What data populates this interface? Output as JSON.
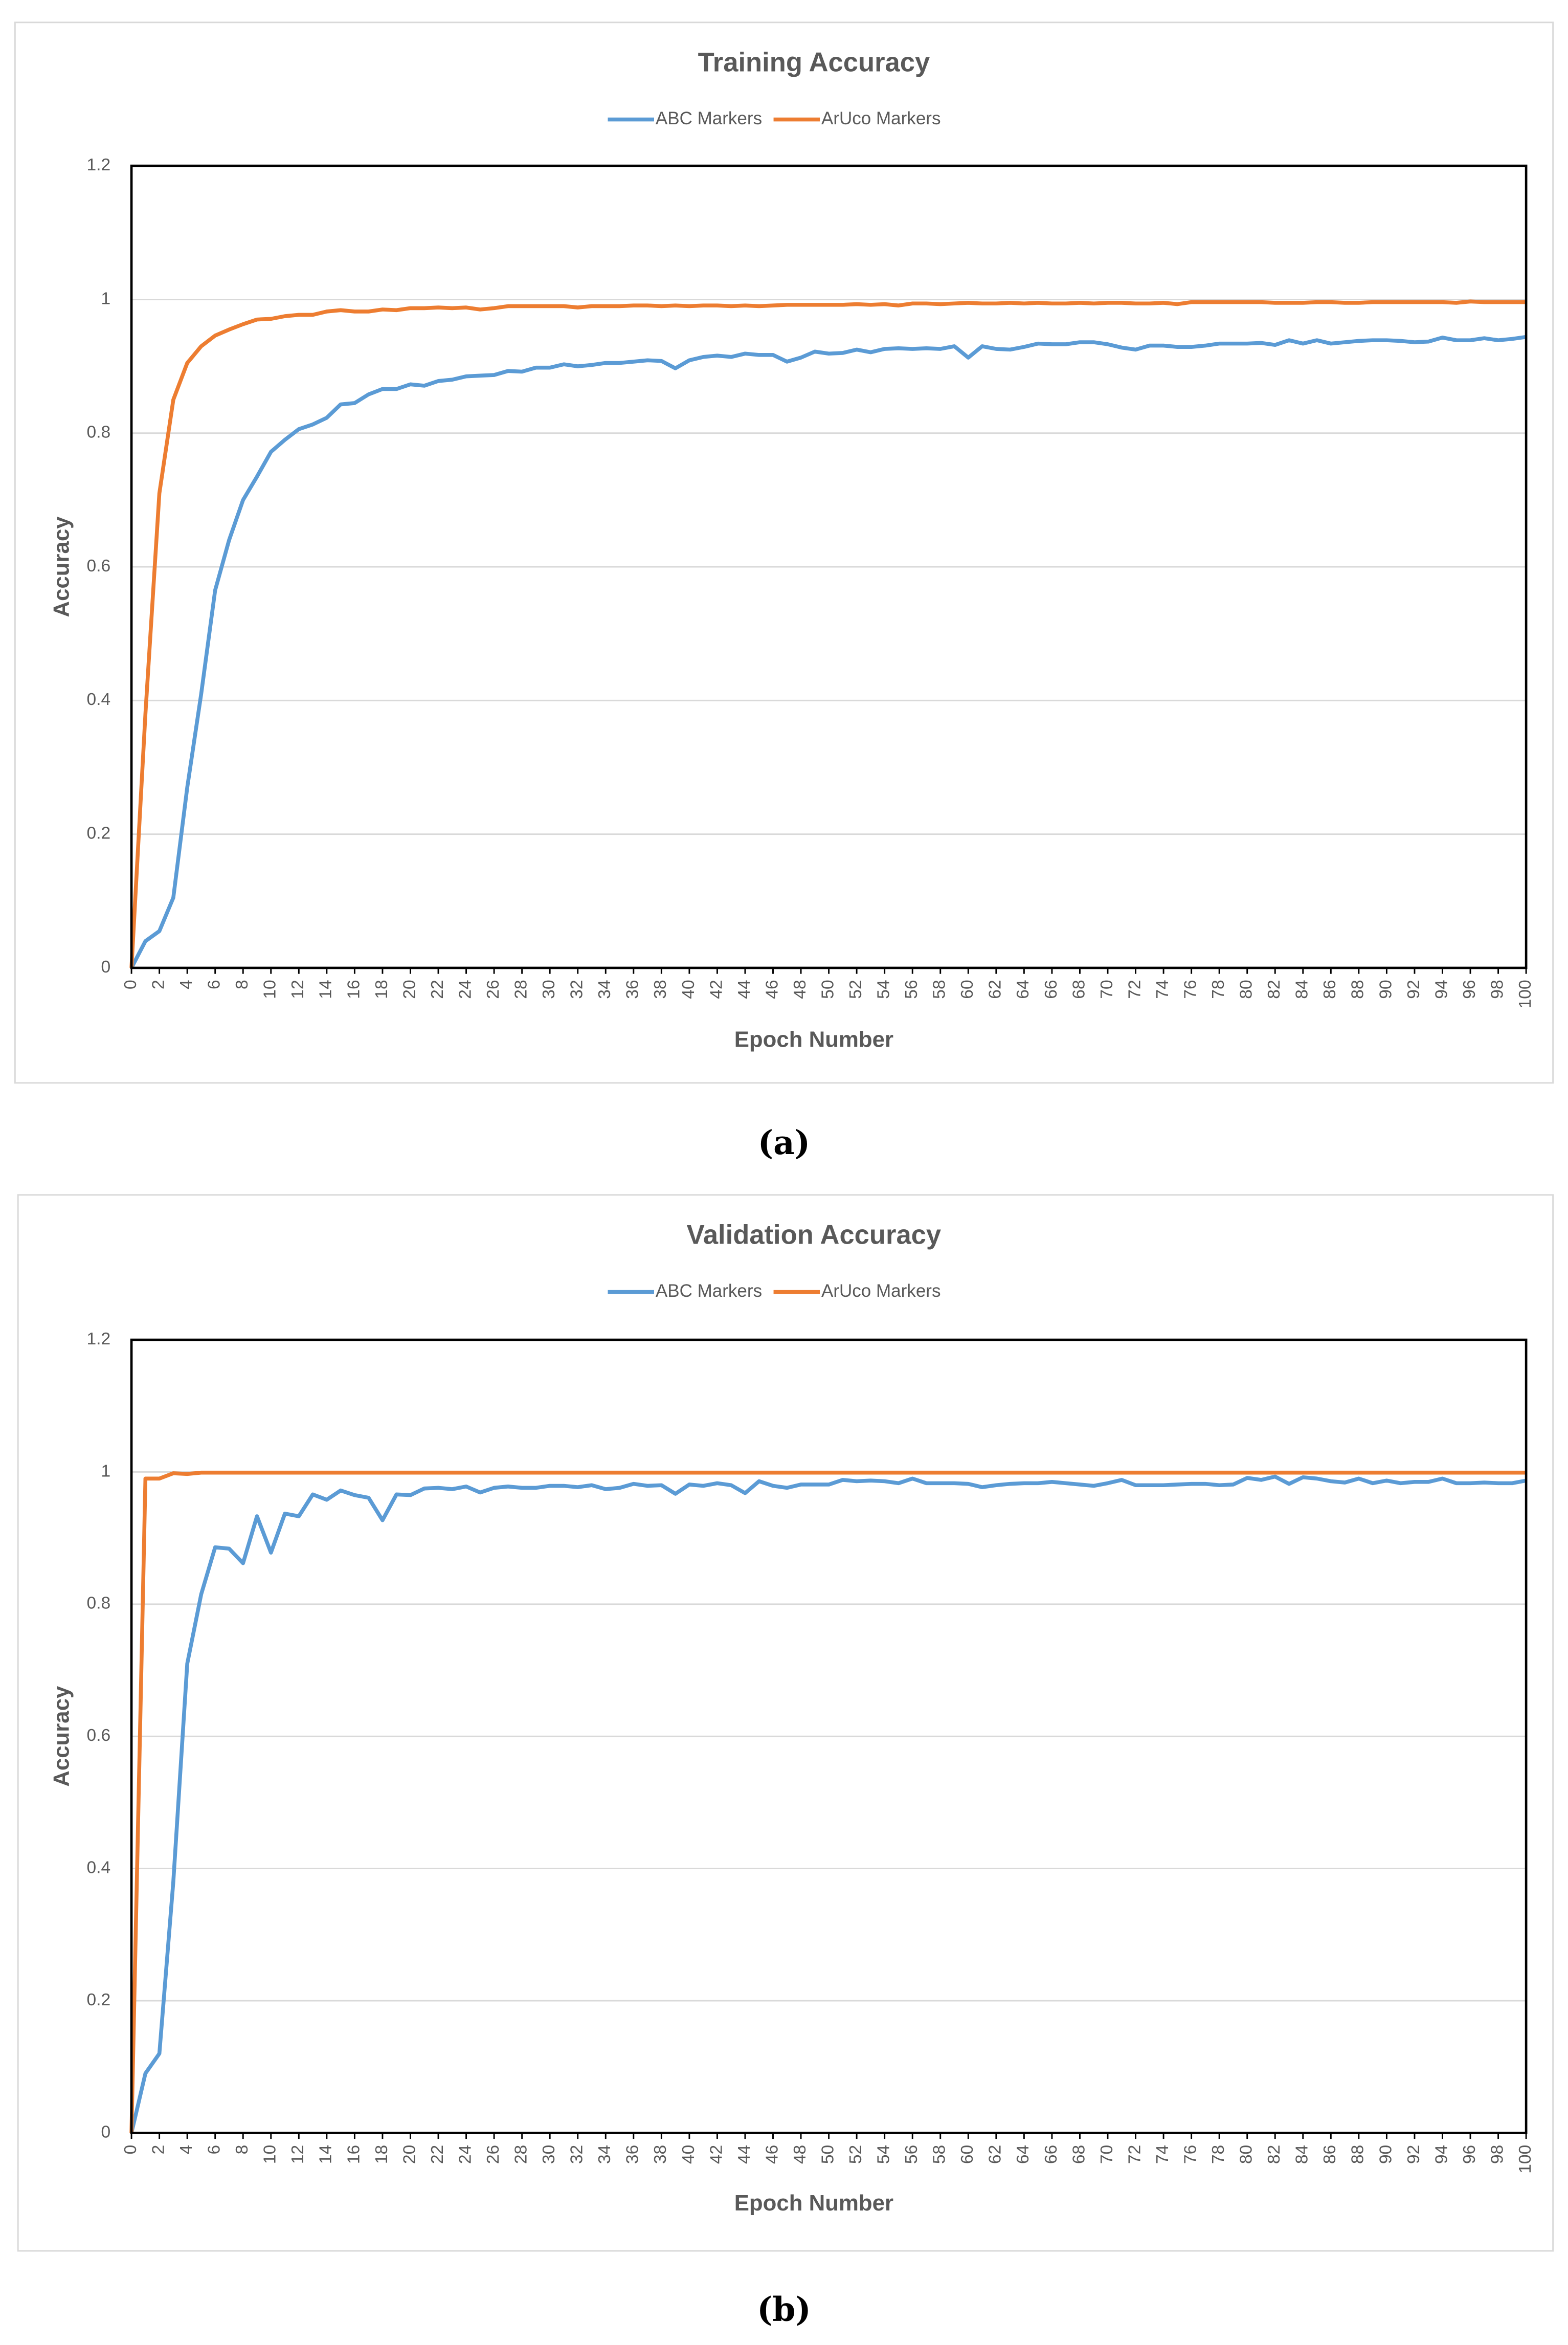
{
  "chart_data": [
    {
      "type": "line",
      "title": "Training Accuracy",
      "caption": "(a)",
      "xlabel": "Epoch Number",
      "ylabel": "Accuracy",
      "x": [
        0,
        1,
        2,
        3,
        4,
        5,
        6,
        7,
        8,
        9,
        10,
        11,
        12,
        13,
        14,
        15,
        16,
        17,
        18,
        19,
        20,
        21,
        22,
        23,
        24,
        25,
        26,
        27,
        28,
        29,
        30,
        31,
        32,
        33,
        34,
        35,
        36,
        37,
        38,
        39,
        40,
        41,
        42,
        43,
        44,
        45,
        46,
        47,
        48,
        49,
        50,
        51,
        52,
        53,
        54,
        55,
        56,
        57,
        58,
        59,
        60,
        61,
        62,
        63,
        64,
        65,
        66,
        67,
        68,
        69,
        70,
        71,
        72,
        73,
        74,
        75,
        76,
        77,
        78,
        79,
        80,
        81,
        82,
        83,
        84,
        85,
        86,
        87,
        88,
        89,
        90,
        91,
        92,
        93,
        94,
        95,
        96,
        97,
        98,
        99,
        100
      ],
      "xlim": [
        0,
        100
      ],
      "xticks": [
        0,
        2,
        4,
        6,
        8,
        10,
        12,
        14,
        16,
        18,
        20,
        22,
        24,
        26,
        28,
        30,
        32,
        34,
        36,
        38,
        40,
        42,
        44,
        46,
        48,
        50,
        52,
        54,
        56,
        58,
        60,
        62,
        64,
        66,
        68,
        70,
        72,
        74,
        76,
        78,
        80,
        82,
        84,
        86,
        88,
        90,
        92,
        94,
        96,
        98,
        100
      ],
      "ylim": [
        0,
        1.2
      ],
      "yticks": [
        0,
        0.2,
        0.4,
        0.6,
        0.8,
        1,
        1.2
      ],
      "grid": true,
      "legend": "top",
      "series": [
        {
          "name": "ABC Markers",
          "color": "#5b9bd5",
          "values": [
            0,
            0.04,
            0.055,
            0.105,
            0.27,
            0.41,
            0.565,
            0.64,
            0.7,
            0.735,
            0.772,
            0.79,
            0.806,
            0.813,
            0.823,
            0.843,
            0.845,
            0.858,
            0.866,
            0.866,
            0.873,
            0.871,
            0.878,
            0.88,
            0.885,
            0.886,
            0.887,
            0.893,
            0.892,
            0.898,
            0.898,
            0.903,
            0.9,
            0.902,
            0.905,
            0.905,
            0.907,
            0.909,
            0.908,
            0.897,
            0.909,
            0.914,
            0.916,
            0.914,
            0.919,
            0.917,
            0.917,
            0.907,
            0.913,
            0.922,
            0.919,
            0.92,
            0.925,
            0.921,
            0.926,
            0.927,
            0.926,
            0.927,
            0.926,
            0.93,
            0.913,
            0.93,
            0.926,
            0.925,
            0.929,
            0.934,
            0.933,
            0.933,
            0.936,
            0.936,
            0.933,
            0.928,
            0.925,
            0.931,
            0.931,
            0.929,
            0.929,
            0.931,
            0.934,
            0.934,
            0.934,
            0.935,
            0.932,
            0.939,
            0.934,
            0.939,
            0.934,
            0.936,
            0.938,
            0.939,
            0.939,
            0.938,
            0.936,
            0.937,
            0.943,
            0.939,
            0.939,
            0.942,
            0.939,
            0.941,
            0.944
          ]
        },
        {
          "name": "ArUco Markers",
          "color": "#ed7d31",
          "values": [
            0,
            0.38,
            0.71,
            0.85,
            0.905,
            0.93,
            0.946,
            0.955,
            0.963,
            0.97,
            0.971,
            0.975,
            0.977,
            0.977,
            0.982,
            0.984,
            0.982,
            0.982,
            0.985,
            0.984,
            0.987,
            0.987,
            0.988,
            0.987,
            0.988,
            0.985,
            0.987,
            0.99,
            0.99,
            0.99,
            0.99,
            0.99,
            0.988,
            0.99,
            0.99,
            0.99,
            0.991,
            0.991,
            0.99,
            0.991,
            0.99,
            0.991,
            0.991,
            0.99,
            0.991,
            0.99,
            0.991,
            0.992,
            0.992,
            0.992,
            0.992,
            0.992,
            0.993,
            0.992,
            0.993,
            0.991,
            0.994,
            0.994,
            0.993,
            0.994,
            0.995,
            0.994,
            0.994,
            0.995,
            0.994,
            0.995,
            0.994,
            0.994,
            0.995,
            0.994,
            0.995,
            0.995,
            0.994,
            0.994,
            0.995,
            0.993,
            0.996,
            0.996,
            0.996,
            0.996,
            0.996,
            0.996,
            0.995,
            0.995,
            0.995,
            0.996,
            0.996,
            0.995,
            0.995,
            0.996,
            0.996,
            0.996,
            0.996,
            0.996,
            0.996,
            0.995,
            0.997,
            0.996,
            0.996,
            0.996,
            0.996
          ]
        }
      ]
    },
    {
      "type": "line",
      "title": "Validation Accuracy",
      "caption": "(b)",
      "xlabel": "Epoch Number",
      "ylabel": "Accuracy",
      "x": [
        0,
        1,
        2,
        3,
        4,
        5,
        6,
        7,
        8,
        9,
        10,
        11,
        12,
        13,
        14,
        15,
        16,
        17,
        18,
        19,
        20,
        21,
        22,
        23,
        24,
        25,
        26,
        27,
        28,
        29,
        30,
        31,
        32,
        33,
        34,
        35,
        36,
        37,
        38,
        39,
        40,
        41,
        42,
        43,
        44,
        45,
        46,
        47,
        48,
        49,
        50,
        51,
        52,
        53,
        54,
        55,
        56,
        57,
        58,
        59,
        60,
        61,
        62,
        63,
        64,
        65,
        66,
        67,
        68,
        69,
        70,
        71,
        72,
        73,
        74,
        75,
        76,
        77,
        78,
        79,
        80,
        81,
        82,
        83,
        84,
        85,
        86,
        87,
        88,
        89,
        90,
        91,
        92,
        93,
        94,
        95,
        96,
        97,
        98,
        99,
        100
      ],
      "xlim": [
        0,
        100
      ],
      "xticks": [
        0,
        2,
        4,
        6,
        8,
        10,
        12,
        14,
        16,
        18,
        20,
        22,
        24,
        26,
        28,
        30,
        32,
        34,
        36,
        38,
        40,
        42,
        44,
        46,
        48,
        50,
        52,
        54,
        56,
        58,
        60,
        62,
        64,
        66,
        68,
        70,
        72,
        74,
        76,
        78,
        80,
        82,
        84,
        86,
        88,
        90,
        92,
        94,
        96,
        98,
        100
      ],
      "ylim": [
        0,
        1.2
      ],
      "yticks": [
        0,
        0.2,
        0.4,
        0.6,
        0.8,
        1,
        1.2
      ],
      "grid": true,
      "legend": "top",
      "series": [
        {
          "name": "ABC Markers",
          "color": "#5b9bd5",
          "values": [
            0,
            0.09,
            0.12,
            0.38,
            0.71,
            0.815,
            0.886,
            0.884,
            0.862,
            0.933,
            0.878,
            0.937,
            0.933,
            0.966,
            0.958,
            0.972,
            0.965,
            0.961,
            0.927,
            0.966,
            0.965,
            0.975,
            0.976,
            0.974,
            0.978,
            0.969,
            0.976,
            0.978,
            0.976,
            0.976,
            0.979,
            0.979,
            0.977,
            0.98,
            0.974,
            0.976,
            0.982,
            0.979,
            0.98,
            0.967,
            0.981,
            0.979,
            0.983,
            0.98,
            0.968,
            0.986,
            0.979,
            0.976,
            0.981,
            0.981,
            0.981,
            0.988,
            0.986,
            0.987,
            0.986,
            0.983,
            0.99,
            0.983,
            0.983,
            0.983,
            0.982,
            0.977,
            0.98,
            0.982,
            0.983,
            0.983,
            0.985,
            0.983,
            0.981,
            0.979,
            0.983,
            0.988,
            0.98,
            0.98,
            0.98,
            0.981,
            0.982,
            0.982,
            0.98,
            0.981,
            0.991,
            0.988,
            0.993,
            0.982,
            0.992,
            0.99,
            0.986,
            0.984,
            0.99,
            0.983,
            0.987,
            0.983,
            0.985,
            0.985,
            0.99,
            0.983,
            0.983,
            0.984,
            0.983,
            0.983,
            0.987
          ]
        },
        {
          "name": "ArUco Markers",
          "color": "#ed7d31",
          "values": [
            0,
            0.99,
            0.99,
            0.998,
            0.997,
            0.999,
            0.999,
            0.999,
            0.999,
            0.999,
            0.999,
            0.999,
            0.999,
            0.999,
            0.999,
            0.999,
            0.999,
            0.999,
            0.999,
            0.999,
            0.999,
            0.999,
            0.999,
            0.999,
            0.999,
            0.999,
            0.999,
            0.999,
            0.999,
            0.999,
            0.999,
            0.999,
            0.999,
            0.999,
            0.999,
            0.999,
            0.999,
            0.999,
            0.999,
            0.999,
            0.999,
            0.999,
            0.999,
            0.999,
            0.999,
            0.999,
            0.999,
            0.999,
            0.999,
            0.999,
            0.999,
            0.999,
            0.999,
            0.999,
            0.999,
            0.999,
            0.999,
            0.999,
            0.999,
            0.999,
            0.999,
            0.999,
            0.999,
            0.999,
            0.999,
            0.999,
            0.999,
            0.999,
            0.999,
            0.999,
            0.999,
            0.999,
            0.999,
            0.999,
            0.999,
            0.999,
            0.999,
            0.999,
            0.999,
            0.999,
            0.999,
            0.999,
            0.999,
            0.999,
            0.999,
            0.999,
            0.999,
            0.999,
            0.999,
            0.999,
            0.999,
            0.999,
            0.999,
            0.999,
            0.999,
            0.999,
            0.999,
            0.999,
            0.999,
            0.999,
            0.999
          ]
        }
      ]
    }
  ]
}
